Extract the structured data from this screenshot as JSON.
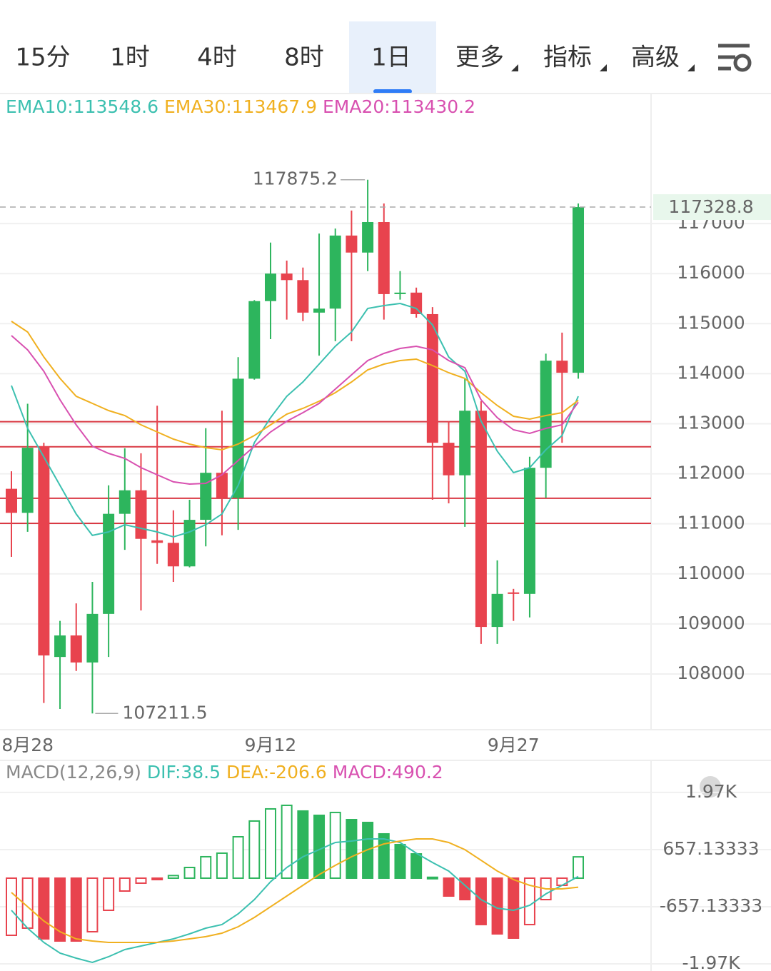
{
  "tabs": {
    "items": [
      "15分",
      "1时",
      "4时",
      "8时",
      "1日",
      "更多",
      "指标",
      "高级"
    ],
    "active": 4
  },
  "chart_data": [
    {
      "type": "candlestick",
      "categories": [
        null,
        "8月28",
        null,
        null,
        null,
        null,
        null,
        null,
        null,
        null,
        null,
        null,
        null,
        null,
        null,
        null,
        "9月12",
        null,
        null,
        null,
        null,
        null,
        null,
        null,
        null,
        null,
        null,
        null,
        null,
        null,
        null,
        "9月27",
        null,
        null,
        null,
        null
      ],
      "open": [
        111700,
        111220,
        112550,
        108340,
        108770,
        108230,
        109200,
        111200,
        111670,
        110670,
        110620,
        110150,
        111080,
        112020,
        111520,
        113900,
        115450,
        116000,
        115870,
        115220,
        115300,
        116760,
        116420,
        117030,
        115590,
        115620,
        115190,
        112620,
        111970,
        113260,
        108940,
        109630,
        109600,
        112120,
        114260,
        114020
      ],
      "high": [
        112050,
        113400,
        112620,
        109060,
        109410,
        109840,
        111770,
        112510,
        112410,
        113360,
        111270,
        111480,
        112910,
        113260,
        114330,
        115470,
        116620,
        116260,
        116120,
        116800,
        116900,
        117260,
        117875.2,
        117400,
        116050,
        115720,
        115330,
        113050,
        113910,
        113450,
        110270,
        109700,
        112340,
        114400,
        114820,
        117400
      ],
      "low": [
        110340,
        110840,
        107420,
        107300,
        108060,
        107211.5,
        108340,
        110480,
        109270,
        110200,
        109840,
        110130,
        110550,
        110770,
        110880,
        113880,
        114690,
        115080,
        115050,
        114360,
        114650,
        114650,
        116050,
        115080,
        115480,
        115120,
        111480,
        111410,
        110940,
        108600,
        108600,
        109060,
        109130,
        111520,
        112620,
        113900
      ],
      "close": [
        111220,
        112520,
        108370,
        108770,
        108230,
        109200,
        111200,
        111670,
        110700,
        110620,
        110150,
        111080,
        112020,
        111520,
        113900,
        115450,
        116000,
        115870,
        115220,
        115300,
        116760,
        116420,
        117030,
        115590,
        115620,
        115190,
        112620,
        111970,
        113260,
        108940,
        109600,
        109600,
        112120,
        114260,
        114020,
        117328.8
      ],
      "up_color": "#2db55d",
      "down_color": "#e8434e",
      "series": [
        {
          "name": "EMA10",
          "label": "EMA10:113548.6",
          "color": "#3cc0b0",
          "values": [
            113763,
            112907,
            112337,
            111766,
            111196,
            110768,
            110839,
            110982,
            110910,
            110839,
            110739,
            110839,
            110982,
            111196,
            111766,
            112622,
            113121,
            113549,
            113834,
            114191,
            114547,
            114833,
            115304,
            115361,
            115404,
            115304,
            114976,
            114333,
            114048,
            113050,
            112451,
            112023,
            112123,
            112479,
            112765,
            113548.6
          ]
        },
        {
          "name": "EMA30",
          "label": "EMA30:113467.9",
          "color": "#f0b020",
          "values": [
            115047,
            114833,
            114333,
            113906,
            113549,
            113406,
            113264,
            113164,
            112978,
            112836,
            112693,
            112593,
            112522,
            112479,
            112593,
            112765,
            112978,
            113192,
            113306,
            113449,
            113620,
            113834,
            114077,
            114191,
            114262,
            114291,
            114162,
            114020,
            113906,
            113620,
            113364,
            113150,
            113093,
            113164,
            113221,
            113467.9
          ]
        },
        {
          "name": "EMA20",
          "label": "EMA20:113430.2",
          "color": "#d850b0",
          "values": [
            114762,
            114476,
            114048,
            113478,
            112978,
            112551,
            112408,
            112308,
            112123,
            111980,
            111838,
            111795,
            111809,
            111980,
            112265,
            112551,
            112836,
            113050,
            113221,
            113406,
            113692,
            113977,
            114262,
            114405,
            114505,
            114548,
            114476,
            114262,
            114120,
            113478,
            113121,
            112879,
            112807,
            112907,
            112978,
            113430.2
          ]
        }
      ],
      "hlines": [
        113040,
        112540,
        111510,
        111010
      ],
      "hline_color": "#d93a44",
      "ylim": [
        106887,
        119612
      ],
      "yticks": [
        108000,
        109000,
        110000,
        111000,
        112000,
        113000,
        114000,
        115000,
        116000,
        117000
      ],
      "grid": true
    },
    {
      "type": "macd",
      "title": "MACD(12,26,9)",
      "label": "MACD:490.2",
      "values": [
        -1314,
        -1149,
        -1396,
        -1445,
        -1445,
        -1232,
        -739,
        -296,
        -115,
        -10,
        60,
        246,
        493,
        575,
        952,
        1314,
        1593,
        1675,
        1544,
        1445,
        1511,
        1346,
        1281,
        1018,
        772,
        558,
        20,
        -411,
        -493,
        -1067,
        -1281,
        -1379,
        -1067,
        -493,
        -164,
        490.2
      ],
      "up_color": "#2db55d",
      "down_color": "#e8434e",
      "series": [
        {
          "name": "DIF",
          "label": "DIF:38.5",
          "color": "#3cc0b0",
          "values": [
            -739,
            -1149,
            -1478,
            -1724,
            -1839,
            -1938,
            -1806,
            -1642,
            -1560,
            -1478,
            -1396,
            -1281,
            -1149,
            -1067,
            -821,
            -493,
            -82,
            246,
            493,
            657,
            821,
            854,
            903,
            903,
            821,
            575,
            361,
            164,
            -164,
            -493,
            -690,
            -739,
            -624,
            -361,
            -164,
            38.5
          ]
        },
        {
          "name": "DEA",
          "label": "DEA:-206.6",
          "color": "#f0b020",
          "values": [
            -328,
            -657,
            -985,
            -1232,
            -1396,
            -1445,
            -1478,
            -1478,
            -1478,
            -1478,
            -1445,
            -1396,
            -1346,
            -1264,
            -1117,
            -903,
            -657,
            -411,
            -164,
            82,
            296,
            493,
            657,
            788,
            854,
            903,
            903,
            821,
            657,
            411,
            164,
            -33,
            -164,
            -246,
            -246,
            -206.6
          ]
        }
      ],
      "label_color": "#d850b0",
      "ylim": [
        -2135,
        2709
      ],
      "yticks": [
        {
          "value": 1971.4,
          "label": "1.97K"
        },
        657.13333,
        -657.13333,
        {
          "value": -1971.4,
          "label": "-1.97K"
        }
      ],
      "grid": true
    }
  ]
}
